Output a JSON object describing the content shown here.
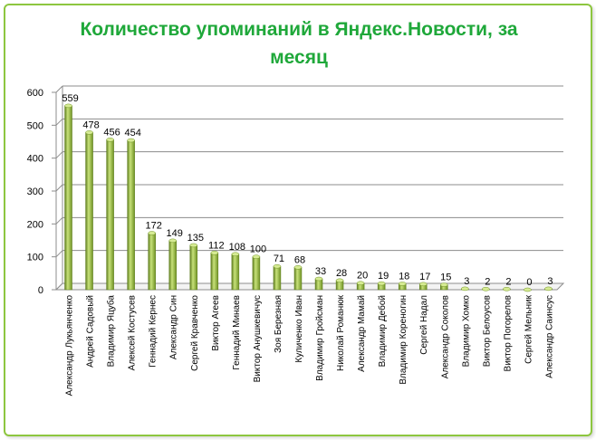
{
  "chart_data": {
    "type": "bar",
    "title": "Количество упоминаний в Яндекс.Новости, за месяц",
    "categories": [
      "Александр Лукьянченко",
      "Андрей Садовый",
      "Владимир Яцуба",
      "Алексей Костусев",
      "Геннадий Кернес",
      "Александр Син",
      "Сергей Кравченко",
      "Виктор Агеев",
      "Геннадий Минаев",
      "Виктор Анушкевичус",
      "Зоя Березная",
      "Куличенко Иван",
      "Владимир Гройсман",
      "Николай Романюк",
      "Александр Мамай",
      "Владимир Дебой",
      "Владимир Кореногин",
      "Сергей Надал",
      "Александр Соколов",
      "Владимир Хомко",
      "Виктор Белоусов",
      "Виктор Погорелов",
      "Сергей Мельник",
      "Александр Саинсус"
    ],
    "values": [
      559,
      478,
      456,
      454,
      172,
      149,
      135,
      112,
      108,
      100,
      71,
      68,
      33,
      28,
      20,
      19,
      18,
      17,
      15,
      3,
      2,
      2,
      0,
      3
    ],
    "ylim": [
      0,
      600
    ],
    "yticks": [
      0,
      100,
      200,
      300,
      400,
      500,
      600
    ],
    "grid": true,
    "legend": "none",
    "colors": {
      "bar_light": "#c8e27a",
      "bar_mid": "#8fb33a",
      "bar_dark": "#5e7d1e",
      "title": "#1fa83a",
      "frame": "#8dc63f",
      "grid": "#8c8c8c"
    }
  }
}
